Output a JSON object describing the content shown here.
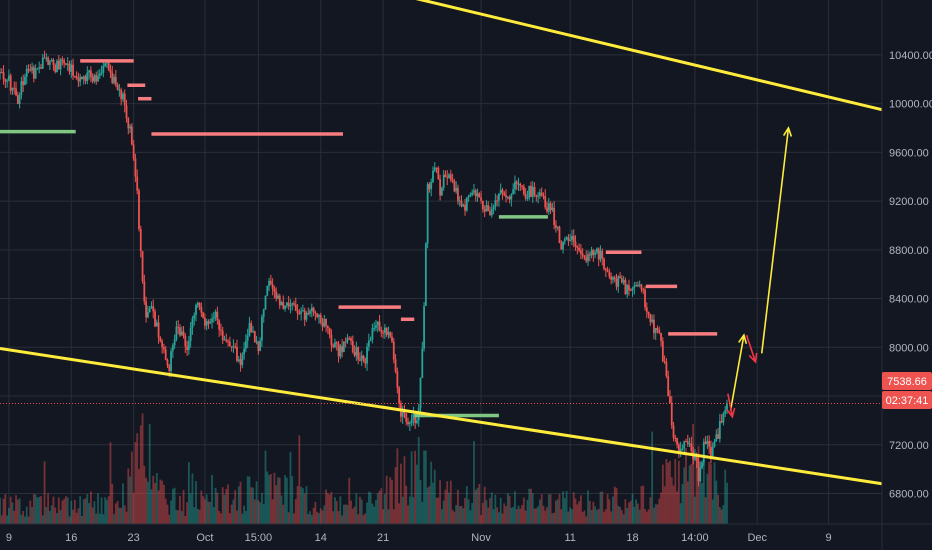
{
  "chart_data": {
    "type": "candlestick",
    "price_axis": {
      "ticks": [
        6800,
        7200,
        7600,
        8000,
        8400,
        8800,
        9200,
        9600,
        10000,
        10400
      ],
      "tick_labels": [
        "6800.00",
        "7200.00",
        "7600.00",
        "8000.00",
        "8400.00",
        "8800.00",
        "9200.00",
        "9600.00",
        "10000.00",
        "10400.00"
      ],
      "range": [
        6550,
        10850
      ]
    },
    "time_axis": {
      "ticks": [
        {
          "label": "9",
          "day": 0
        },
        {
          "label": "16",
          "day": 7
        },
        {
          "label": "23",
          "day": 14
        },
        {
          "label": "Oct",
          "day": 22
        },
        {
          "label": "15:00",
          "day": 28
        },
        {
          "label": "14",
          "day": 35
        },
        {
          "label": "21",
          "day": 42
        },
        {
          "label": "Nov",
          "day": 53
        },
        {
          "label": "11",
          "day": 63
        },
        {
          "label": "18",
          "day": 70
        },
        {
          "label": "14:00",
          "day": 77
        },
        {
          "label": "Dec",
          "day": 84
        },
        {
          "label": "9",
          "day": 92
        }
      ],
      "range": [
        -1,
        98
      ]
    },
    "price_path": [
      [
        -1,
        10250
      ],
      [
        0,
        10180
      ],
      [
        1,
        10050
      ],
      [
        2,
        10300
      ],
      [
        3,
        10250
      ],
      [
        4,
        10380
      ],
      [
        5,
        10300
      ],
      [
        6,
        10350
      ],
      [
        7,
        10300
      ],
      [
        8,
        10200
      ],
      [
        9,
        10250
      ],
      [
        10,
        10200
      ],
      [
        11,
        10300
      ],
      [
        12,
        10150
      ],
      [
        13,
        10000
      ],
      [
        13.5,
        9800
      ],
      [
        14,
        9600
      ],
      [
        14.5,
        9150
      ],
      [
        15,
        8500
      ],
      [
        15.5,
        8250
      ],
      [
        16,
        8300
      ],
      [
        17,
        8050
      ],
      [
        18,
        7850
      ],
      [
        19,
        8200
      ],
      [
        20,
        7950
      ],
      [
        21,
        8400
      ],
      [
        22,
        8150
      ],
      [
        23,
        8300
      ],
      [
        24,
        8100
      ],
      [
        25,
        8050
      ],
      [
        26,
        7850
      ],
      [
        27,
        8200
      ],
      [
        28,
        8000
      ],
      [
        29,
        8550
      ],
      [
        30,
        8400
      ],
      [
        31,
        8350
      ],
      [
        32,
        8300
      ],
      [
        33,
        8250
      ],
      [
        34,
        8350
      ],
      [
        35,
        8250
      ],
      [
        36,
        8100
      ],
      [
        37,
        7950
      ],
      [
        38,
        8100
      ],
      [
        39,
        7950
      ],
      [
        40,
        7900
      ],
      [
        41,
        8200
      ],
      [
        42,
        8150
      ],
      [
        43,
        8050
      ],
      [
        44,
        7450
      ],
      [
        45,
        7400
      ],
      [
        46,
        7450
      ],
      [
        46.5,
        8100
      ],
      [
        47,
        9300
      ],
      [
        48,
        9500
      ],
      [
        48.5,
        9250
      ],
      [
        49,
        9450
      ],
      [
        50,
        9300
      ],
      [
        51,
        9150
      ],
      [
        52,
        9250
      ],
      [
        53,
        9200
      ],
      [
        54,
        9100
      ],
      [
        55,
        9250
      ],
      [
        56,
        9200
      ],
      [
        57,
        9350
      ],
      [
        58,
        9250
      ],
      [
        59,
        9300
      ],
      [
        60,
        9200
      ],
      [
        61,
        9100
      ],
      [
        62,
        8850
      ],
      [
        63,
        8900
      ],
      [
        64,
        8800
      ],
      [
        65,
        8750
      ],
      [
        66,
        8800
      ],
      [
        67,
        8650
      ],
      [
        68,
        8550
      ],
      [
        69,
        8500
      ],
      [
        70,
        8450
      ],
      [
        71,
        8500
      ],
      [
        72,
        8200
      ],
      [
        73,
        8100
      ],
      [
        74,
        7650
      ],
      [
        74.5,
        7300
      ],
      [
        75,
        7150
      ],
      [
        76,
        7250
      ],
      [
        77,
        7100
      ],
      [
        77.5,
        6900
      ],
      [
        78,
        7200
      ],
      [
        79,
        7150
      ],
      [
        80,
        7400
      ],
      [
        80.7,
        7539
      ]
    ],
    "volume_path": [
      [
        -1,
        0.3
      ],
      [
        5,
        0.25
      ],
      [
        10,
        0.3
      ],
      [
        13,
        0.4
      ],
      [
        14.5,
        0.9
      ],
      [
        15,
        1.0
      ],
      [
        15.5,
        0.7
      ],
      [
        17,
        0.4
      ],
      [
        20,
        0.3
      ],
      [
        28,
        0.4
      ],
      [
        29,
        0.5
      ],
      [
        35,
        0.3
      ],
      [
        40,
        0.3
      ],
      [
        43,
        0.5
      ],
      [
        44,
        0.7
      ],
      [
        45,
        0.6
      ],
      [
        46.5,
        0.85
      ],
      [
        47,
        0.7
      ],
      [
        48,
        0.45
      ],
      [
        53,
        0.35
      ],
      [
        60,
        0.3
      ],
      [
        65,
        0.3
      ],
      [
        70,
        0.35
      ],
      [
        74,
        0.6
      ],
      [
        75,
        0.7
      ],
      [
        77,
        0.75
      ],
      [
        78,
        0.6
      ],
      [
        80.7,
        0.5
      ]
    ],
    "resistance_levels": [
      {
        "start": 8,
        "end": 14,
        "price": 10350
      },
      {
        "start": 13.3,
        "end": 15.3,
        "price": 10150
      },
      {
        "start": 14.5,
        "end": 16,
        "price": 10040
      },
      {
        "start": 16,
        "end": 37.5,
        "price": 9750
      },
      {
        "start": 37,
        "end": 44,
        "price": 8330
      },
      {
        "start": 44,
        "end": 45.5,
        "price": 8230
      },
      {
        "start": 67,
        "end": 71,
        "price": 8780
      },
      {
        "start": 71.5,
        "end": 75,
        "price": 8500
      },
      {
        "start": 74,
        "end": 79.5,
        "price": 8110
      }
    ],
    "support_levels": [
      {
        "start": -1,
        "end": 7.5,
        "price": 9770
      },
      {
        "start": 45.5,
        "end": 55,
        "price": 7440
      },
      {
        "start": 55,
        "end": 60.5,
        "price": 9070
      }
    ],
    "trend_lines": [
      {
        "from": [
          43.5,
          10900
        ],
        "to": [
          98,
          9950
        ],
        "color": "#ffeb3b"
      },
      {
        "from": [
          -1,
          7990
        ],
        "to": [
          98,
          6880
        ],
        "color": "#ffeb3b"
      }
    ],
    "projection_arrows": [
      {
        "from": [
          81,
          7480
        ],
        "to": [
          82.5,
          8100
        ],
        "color": "#ffeb3b"
      },
      {
        "from": [
          82.8,
          8100
        ],
        "to": [
          83.8,
          7880
        ],
        "color": "#f23645"
      },
      {
        "from": [
          84.5,
          7950
        ],
        "to": [
          87.5,
          9800
        ],
        "color": "#ffeb3b"
      },
      {
        "from": [
          80.7,
          7620
        ],
        "to": [
          81.2,
          7430
        ],
        "color": "#f23645"
      }
    ],
    "last_price": 7538.66,
    "last_price_label": "7538.66",
    "countdown": "02:37:41",
    "colors": {
      "background": "#131722",
      "grid": "#2a2e39",
      "up": "#26a69a",
      "down": "#ef5350",
      "resistance": "#f77c80",
      "support": "#81c784",
      "trend": "#ffeb3b",
      "axis_text": "#b2b5be",
      "price_badge": "#ef5350"
    }
  }
}
